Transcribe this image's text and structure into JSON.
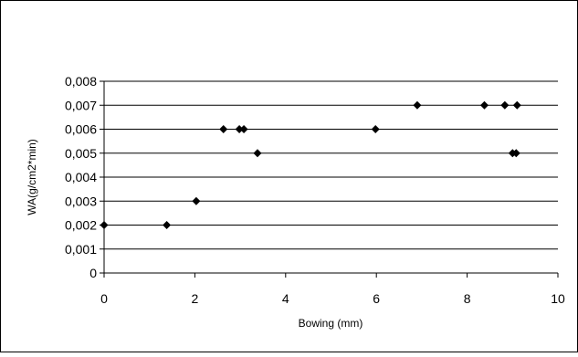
{
  "chart_data": {
    "type": "scatter",
    "xlabel": "Bowing (mm)",
    "ylabel": "WA(g/cm2*min)",
    "xlim": [
      0,
      10
    ],
    "ylim": [
      0,
      0.008
    ],
    "x_ticks": [
      "0",
      "2",
      "4",
      "6",
      "8",
      "10"
    ],
    "y_ticks": [
      "0",
      "0,001",
      "0,002",
      "0,003",
      "0,004",
      "0,005",
      "0,006",
      "0,007",
      "0,008"
    ],
    "grid": "horizontal",
    "marker": "diamond",
    "series": [
      {
        "points": [
          [
            0.0,
            0.002
          ],
          [
            1.38,
            0.002
          ],
          [
            2.03,
            0.003
          ],
          [
            2.63,
            0.006
          ],
          [
            2.98,
            0.006
          ],
          [
            3.08,
            0.006
          ],
          [
            3.38,
            0.005
          ],
          [
            5.98,
            0.006
          ],
          [
            6.9,
            0.007
          ],
          [
            8.38,
            0.007
          ],
          [
            8.83,
            0.007
          ],
          [
            9.0,
            0.005
          ],
          [
            9.08,
            0.005
          ],
          [
            9.1,
            0.007
          ]
        ]
      }
    ]
  },
  "colors": {
    "marker": "#000000",
    "grid": "#000000",
    "frame": "#000000",
    "background": "#ffffff"
  }
}
